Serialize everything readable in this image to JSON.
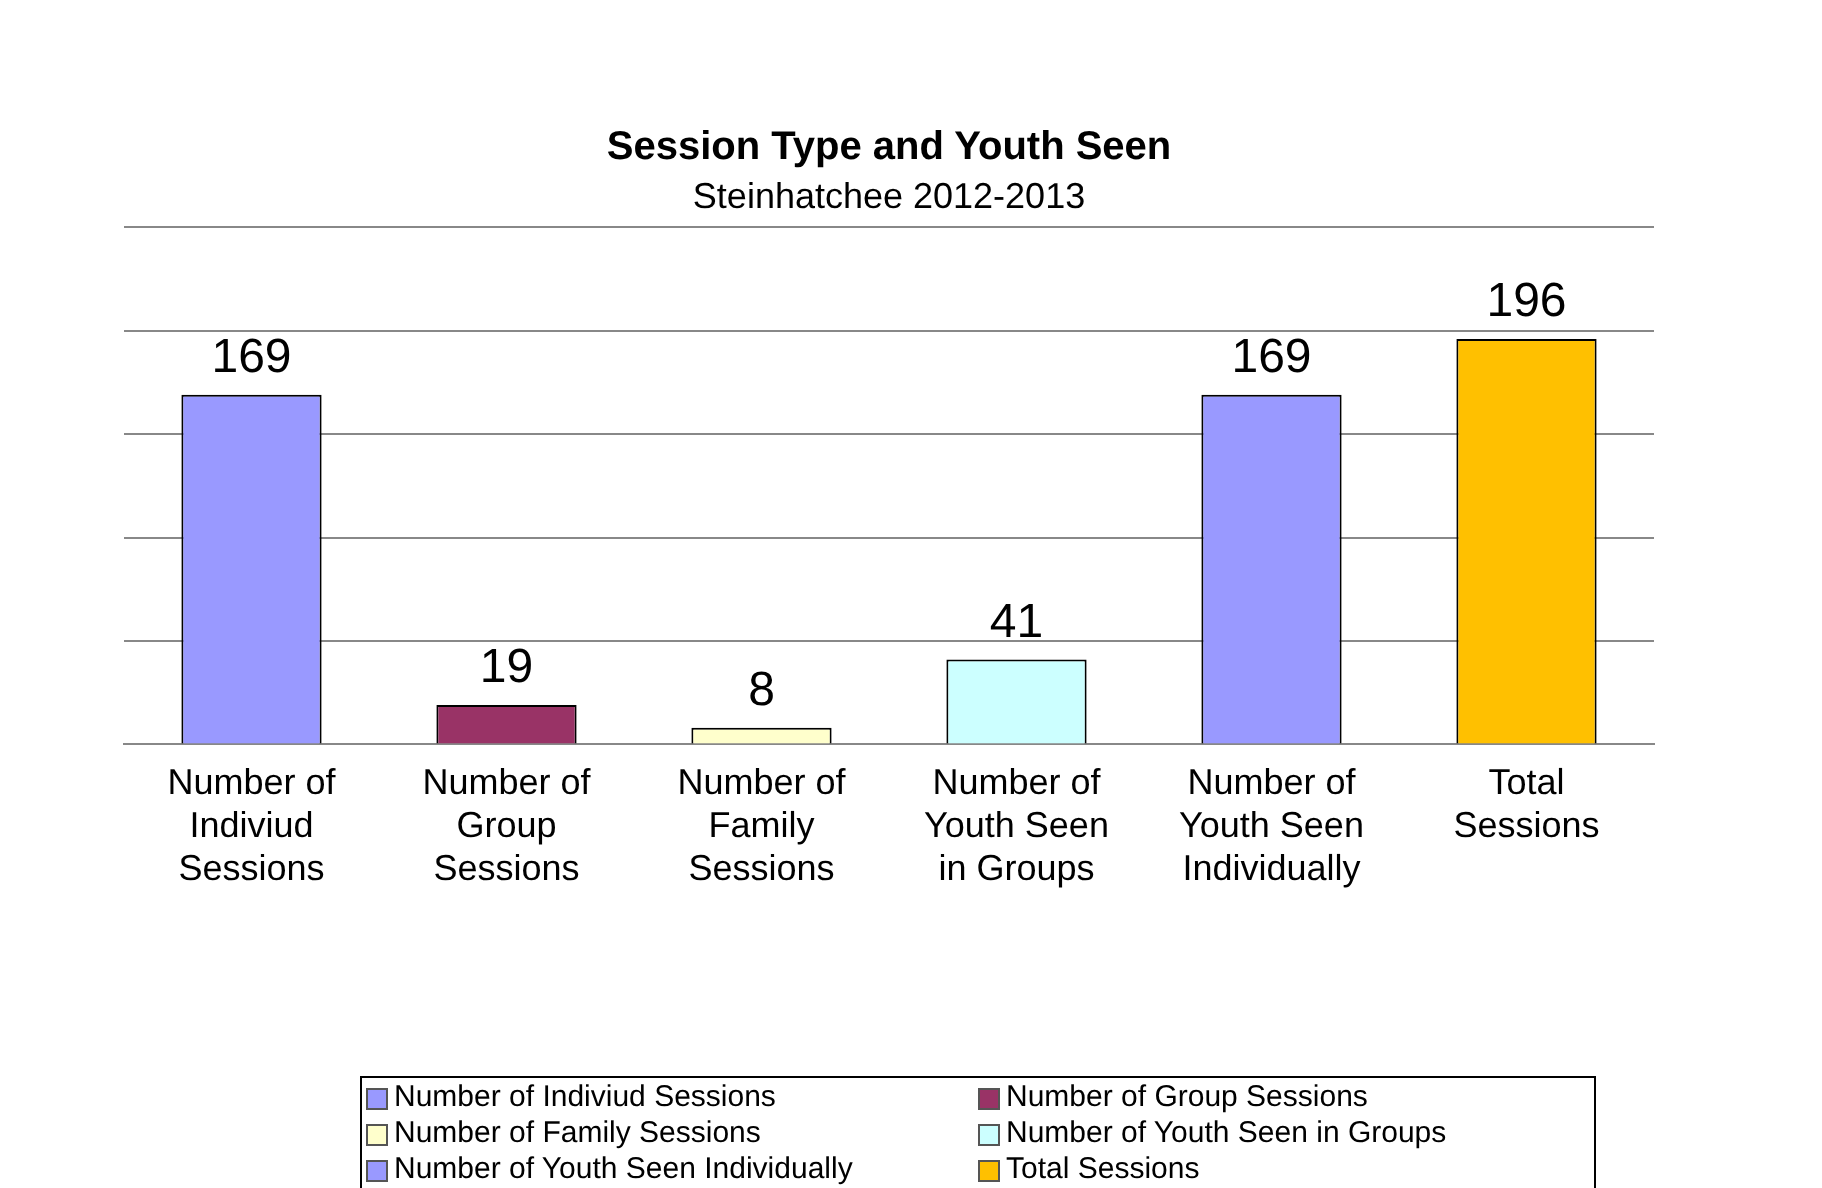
{
  "chart_data": {
    "type": "bar",
    "title": "Session Type and Youth Seen",
    "subtitle": "Steinhatchee 2012-2013",
    "categories": [
      "Number of Indiviud Sessions",
      "Number of Group Sessions",
      "Number of Family Sessions",
      "Number of Youth Seen in Groups",
      "Number of Youth Seen Individually",
      "Total Sessions"
    ],
    "series": [
      {
        "name": "Number of Indiviud Sessions",
        "color": "#9999ff",
        "values": [
          169,
          null,
          null,
          null,
          null,
          null
        ]
      },
      {
        "name": "Number of Group Sessions",
        "color": "#993366",
        "values": [
          null,
          19,
          null,
          null,
          null,
          null
        ]
      },
      {
        "name": "Number of Family Sessions",
        "color": "#ffffcc",
        "values": [
          null,
          null,
          8,
          null,
          null,
          null
        ]
      },
      {
        "name": "Number of Youth Seen in Groups",
        "color": "#ccffff",
        "values": [
          null,
          null,
          null,
          41,
          null,
          null
        ]
      },
      {
        "name": "Number of Youth Seen Individually",
        "color": "#9999ff",
        "values": [
          null,
          null,
          null,
          null,
          169,
          null
        ]
      },
      {
        "name": "Total Sessions",
        "color": "#ffc000",
        "values": [
          null,
          null,
          null,
          null,
          null,
          196
        ]
      }
    ],
    "ylim": [
      0,
      250
    ],
    "yticks": [
      {
        "value": 0,
        "label": null
      },
      {
        "value": 50,
        "label": null
      },
      {
        "value": 100,
        "label": null
      },
      {
        "value": 150,
        "label": null
      },
      {
        "value": 200,
        "label": null
      },
      {
        "value": 250,
        "label": null
      }
    ],
    "tick_labels": "x",
    "grid": "y",
    "data_labels": true,
    "legend": "bottom"
  }
}
